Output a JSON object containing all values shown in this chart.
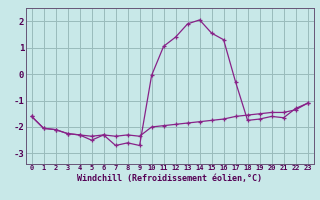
{
  "line1_x": [
    0,
    1,
    2,
    3,
    4,
    5,
    6,
    7,
    8,
    9,
    10,
    11,
    12,
    13,
    14,
    15,
    16,
    17,
    18,
    19,
    20,
    21,
    22,
    23
  ],
  "line1_y": [
    -1.6,
    -2.05,
    -2.1,
    -2.25,
    -2.3,
    -2.35,
    -2.3,
    -2.35,
    -2.3,
    -2.35,
    -2.0,
    -1.95,
    -1.9,
    -1.85,
    -1.8,
    -1.75,
    -1.7,
    -1.6,
    -1.55,
    -1.5,
    -1.45,
    -1.45,
    -1.35,
    -1.1
  ],
  "line2_x": [
    0,
    1,
    2,
    3,
    4,
    5,
    6,
    7,
    8,
    9,
    10,
    11,
    12,
    13,
    14,
    15,
    16,
    17,
    18,
    19,
    20,
    21,
    22,
    23
  ],
  "line2_y": [
    -1.6,
    -2.05,
    -2.1,
    -2.25,
    -2.3,
    -2.5,
    -2.3,
    -2.7,
    -2.6,
    -2.7,
    -0.05,
    1.05,
    1.4,
    1.9,
    2.05,
    1.55,
    1.3,
    -0.3,
    -1.75,
    -1.7,
    -1.6,
    -1.65,
    -1.3,
    -1.1
  ],
  "line_color": "#882288",
  "bg_color": "#c8e8e8",
  "grid_color": "#99bbbb",
  "axis_color": "#665577",
  "text_color": "#550055",
  "xlabel": "Windchill (Refroidissement éolien,°C)",
  "xlim": [
    -0.5,
    23.5
  ],
  "ylim": [
    -3.4,
    2.5
  ],
  "yticks": [
    -3,
    -2,
    -1,
    0,
    1,
    2
  ],
  "xticks": [
    0,
    1,
    2,
    3,
    4,
    5,
    6,
    7,
    8,
    9,
    10,
    11,
    12,
    13,
    14,
    15,
    16,
    17,
    18,
    19,
    20,
    21,
    22,
    23
  ]
}
